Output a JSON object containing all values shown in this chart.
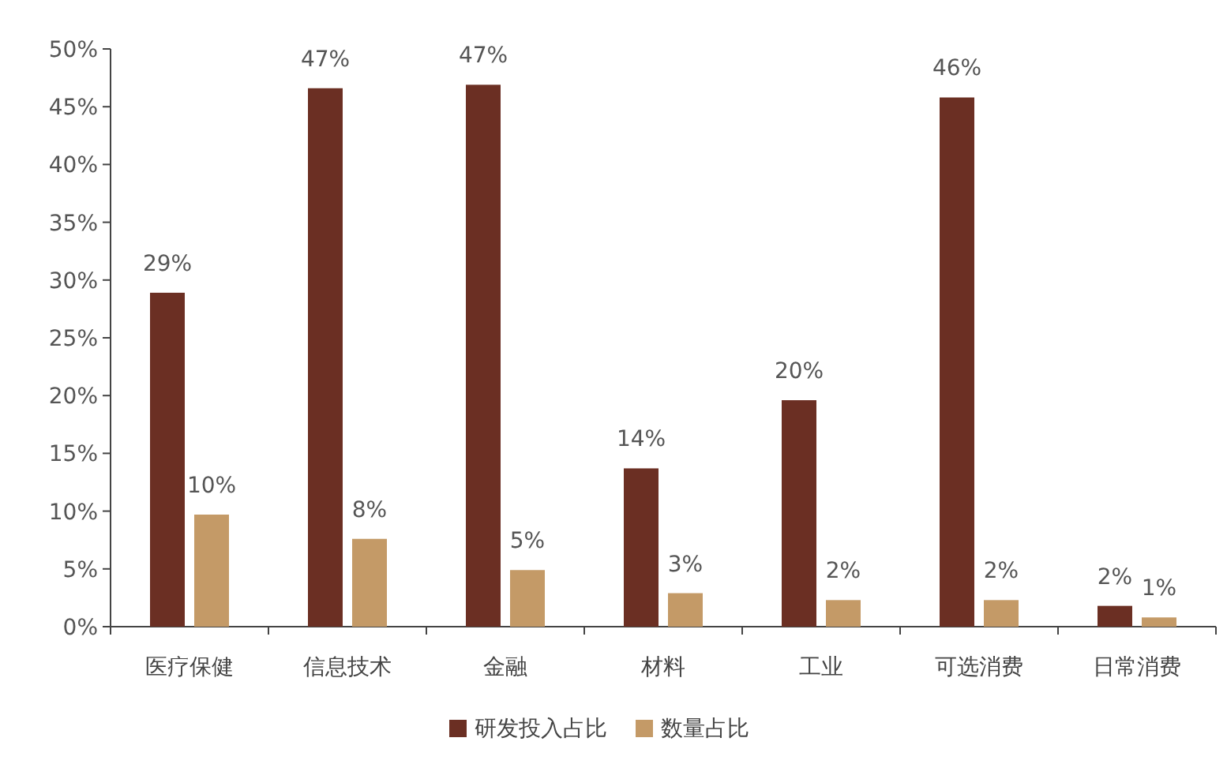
{
  "chart_data": {
    "type": "bar",
    "categories": [
      "医疗保健",
      "信息技术",
      "金融",
      "材料",
      "工业",
      "可选消费",
      "日常消费"
    ],
    "series": [
      {
        "name": "研发投入占比",
        "color": "#6b2f23",
        "values": [
          28.9,
          46.6,
          46.9,
          13.7,
          19.6,
          45.8,
          1.8
        ],
        "value_labels": [
          "29%",
          "47%",
          "47%",
          "14%",
          "20%",
          "46%",
          "2%"
        ]
      },
      {
        "name": "数量占比",
        "color": "#c49a67",
        "values": [
          9.7,
          7.6,
          4.9,
          2.9,
          2.3,
          2.3,
          0.8
        ],
        "value_labels": [
          "10%",
          "8%",
          "5%",
          "3%",
          "2%",
          "2%",
          "1%"
        ]
      }
    ],
    "ylim": [
      0,
      50
    ],
    "yticks": [
      {
        "value": 0,
        "label": "0%"
      },
      {
        "value": 5,
        "label": "5%"
      },
      {
        "value": 10,
        "label": "10%"
      },
      {
        "value": 15,
        "label": "15%"
      },
      {
        "value": 20,
        "label": "20%"
      },
      {
        "value": 25,
        "label": "25%"
      },
      {
        "value": 30,
        "label": "30%"
      },
      {
        "value": 35,
        "label": "35%"
      },
      {
        "value": 40,
        "label": "40%"
      },
      {
        "value": 45,
        "label": "45%"
      },
      {
        "value": 50,
        "label": "50%"
      }
    ],
    "legend": "bottom"
  }
}
